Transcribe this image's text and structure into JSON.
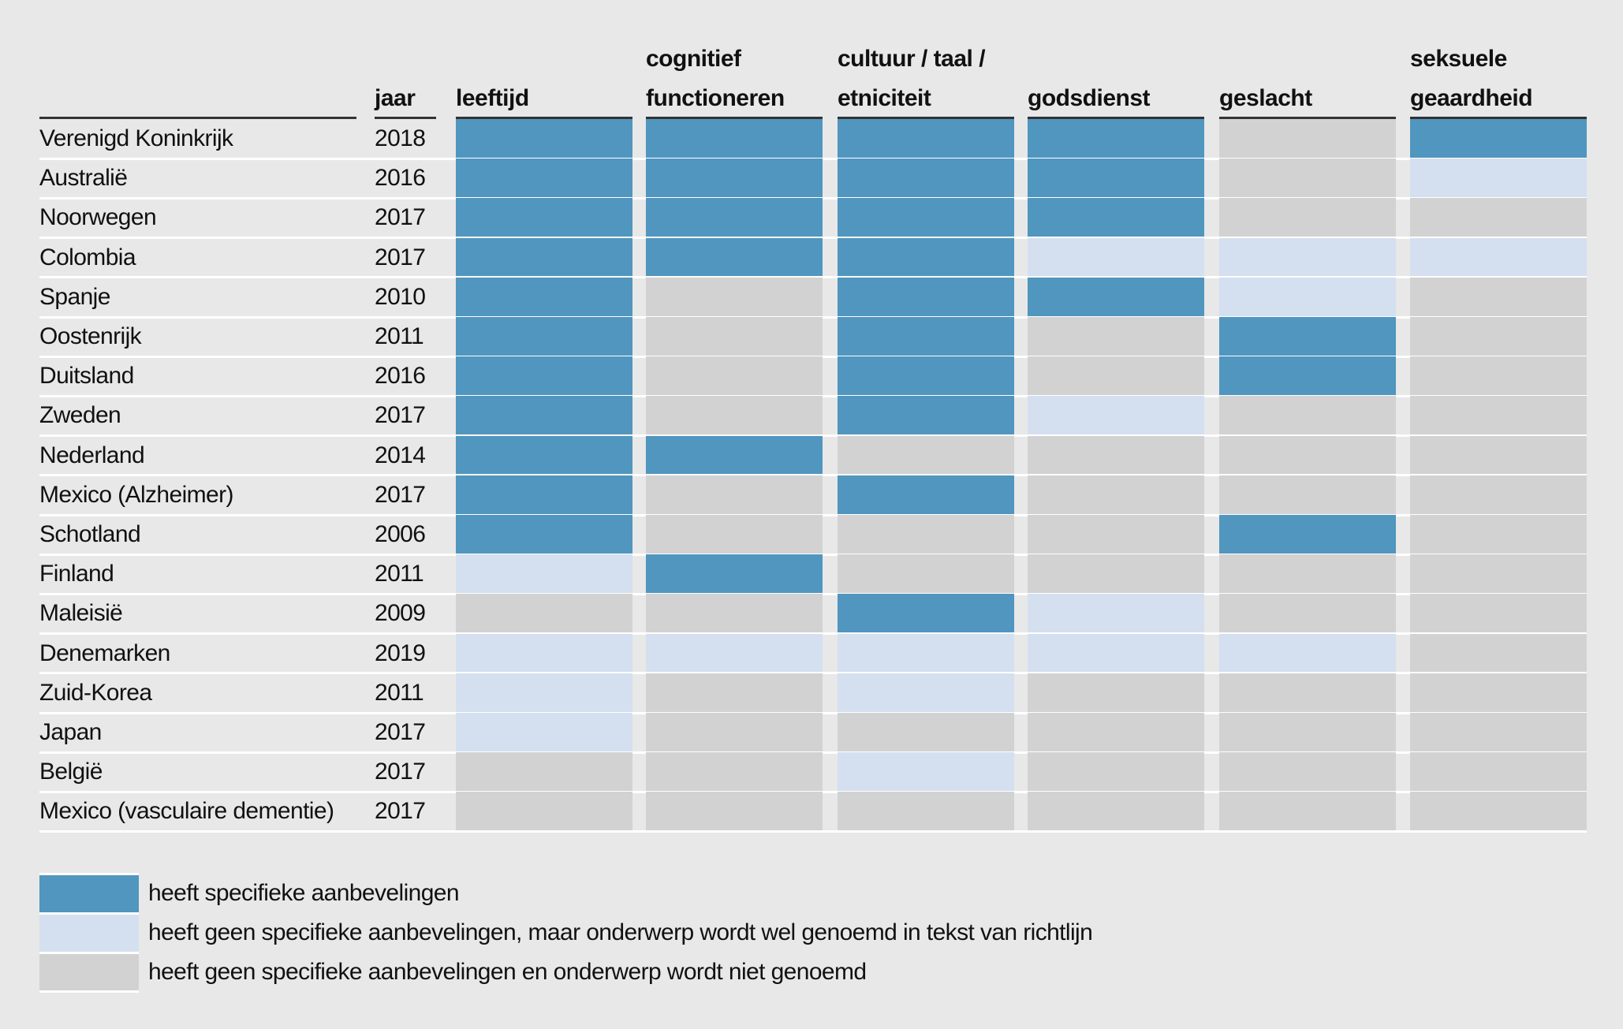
{
  "chart_data": {
    "type": "table",
    "title": "",
    "columns": [
      "jaar",
      "leeftijd",
      "cognitief functioneren",
      "cultuur / taal / etniciteit",
      "godsdienst",
      "geslacht",
      "seksuele geaardheid"
    ],
    "header_lines": {
      "year": [
        "jaar"
      ],
      "topics": [
        [
          "",
          "leeftijd"
        ],
        [
          "cognitief",
          "functioneren"
        ],
        [
          "cultuur / taal /",
          "etniciteit"
        ],
        [
          "",
          "godsdienst"
        ],
        [
          "",
          "geslacht"
        ],
        [
          "seksuele",
          "geaardheid"
        ]
      ]
    },
    "level_meaning": {
      "2": "heeft specifieke aanbevelingen",
      "1": "heeft geen specifieke aanbevelingen, maar onderwerp wordt wel genoemd in tekst van richtlijn",
      "0": "heeft geen specifieke aanbevelingen en onderwerp wordt niet genoemd"
    },
    "rows": [
      {
        "country": "Verenigd Koninkrijk",
        "year": "2018",
        "values": [
          2,
          2,
          2,
          2,
          0,
          2
        ]
      },
      {
        "country": "Australië",
        "year": "2016",
        "values": [
          2,
          2,
          2,
          2,
          0,
          1
        ]
      },
      {
        "country": "Noorwegen",
        "year": "2017",
        "values": [
          2,
          2,
          2,
          2,
          0,
          0
        ]
      },
      {
        "country": "Colombia",
        "year": "2017",
        "values": [
          2,
          2,
          2,
          1,
          1,
          1
        ]
      },
      {
        "country": "Spanje",
        "year": "2010",
        "values": [
          2,
          0,
          2,
          2,
          1,
          0
        ]
      },
      {
        "country": "Oostenrijk",
        "year": "2011",
        "values": [
          2,
          0,
          2,
          0,
          2,
          0
        ]
      },
      {
        "country": "Duitsland",
        "year": "2016",
        "values": [
          2,
          0,
          2,
          0,
          2,
          0
        ]
      },
      {
        "country": "Zweden",
        "year": "2017",
        "values": [
          2,
          0,
          2,
          1,
          0,
          0
        ]
      },
      {
        "country": "Nederland",
        "year": "2014",
        "values": [
          2,
          2,
          0,
          0,
          0,
          0
        ]
      },
      {
        "country": "Mexico (Alzheimer)",
        "year": "2017",
        "values": [
          2,
          0,
          2,
          0,
          0,
          0
        ]
      },
      {
        "country": "Schotland",
        "year": "2006",
        "values": [
          2,
          0,
          0,
          0,
          2,
          0
        ]
      },
      {
        "country": "Finland",
        "year": "2011",
        "values": [
          1,
          2,
          0,
          0,
          0,
          0
        ]
      },
      {
        "country": "Maleisië",
        "year": "2009",
        "values": [
          0,
          0,
          2,
          1,
          0,
          0
        ]
      },
      {
        "country": "Denemarken",
        "year": "2019",
        "values": [
          1,
          1,
          1,
          1,
          1,
          0
        ]
      },
      {
        "country": "Zuid-Korea",
        "year": "2011",
        "values": [
          1,
          0,
          1,
          0,
          0,
          0
        ]
      },
      {
        "country": "Japan",
        "year": "2017",
        "values": [
          1,
          0,
          0,
          0,
          0,
          0
        ]
      },
      {
        "country": "België",
        "year": "2017",
        "values": [
          0,
          0,
          1,
          0,
          0,
          0
        ]
      },
      {
        "country": "Mexico (vasculaire dementie)",
        "year": "2017",
        "values": [
          0,
          0,
          0,
          0,
          0,
          0
        ]
      }
    ],
    "legend": [
      {
        "level": 2,
        "label": "heeft specifieke aanbevelingen"
      },
      {
        "level": 1,
        "label": "heeft geen specifieke aanbevelingen, maar onderwerp wordt wel genoemd in tekst van richtlijn"
      },
      {
        "level": 0,
        "label": "heeft geen specifieke aanbevelingen en onderwerp wordt niet genoemd"
      }
    ],
    "legend_placement": "bottom-left",
    "colors": {
      "2": "#5096bf",
      "1": "#d4e0ef",
      "0": "#d3d2d3"
    }
  }
}
